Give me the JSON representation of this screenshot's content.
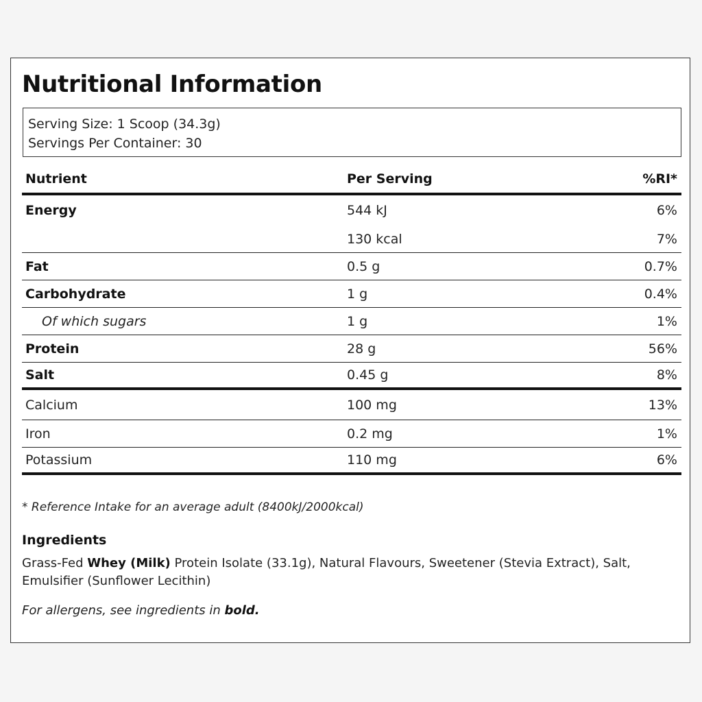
{
  "label": {
    "title": "Nutritional Information",
    "serving_size": "Serving Size: 1 Scoop (34.3g)",
    "servings_per_container": "Servings Per Container: 30"
  },
  "table": {
    "headers": {
      "nutrient": "Nutrient",
      "per_serving": "Per Serving",
      "ri": "%RI*"
    },
    "rows": [
      {
        "nutrient": "Energy",
        "per_serving": "544 kJ",
        "ri": "6%"
      },
      {
        "nutrient": "",
        "per_serving": "130 kcal",
        "ri": "7%"
      },
      {
        "nutrient": "Fat",
        "per_serving": "0.5 g",
        "ri": "0.7%"
      },
      {
        "nutrient": "Carbohydrate",
        "per_serving": "1 g",
        "ri": "0.4%"
      },
      {
        "nutrient": "Of which sugars",
        "per_serving": "1 g",
        "ri": "1%"
      },
      {
        "nutrient": "Protein",
        "per_serving": "28 g",
        "ri": "56%"
      },
      {
        "nutrient": "Salt",
        "per_serving": "0.45 g",
        "ri": "8%"
      },
      {
        "nutrient": "Calcium",
        "per_serving": "100 mg",
        "ri": "13%"
      },
      {
        "nutrient": "Iron",
        "per_serving": "0.2 mg",
        "ri": "1%"
      },
      {
        "nutrient": "Potassium",
        "per_serving": "110 mg",
        "ri": "6%"
      }
    ]
  },
  "footnote": "* Reference Intake for an average adult (8400kJ/2000kcal)",
  "ingredients": {
    "heading": "Ingredients",
    "prefix": "Grass-Fed ",
    "allergen_bold": "Whey (Milk)",
    "suffix": " Protein Isolate (33.1g), Natural Flavours, Sweetener (Stevia Extract), Salt, Emulsifier (Sunflower Lecithin)"
  },
  "allergen_note": {
    "prefix": "For allergens, see ingredients in ",
    "bold": "bold."
  }
}
